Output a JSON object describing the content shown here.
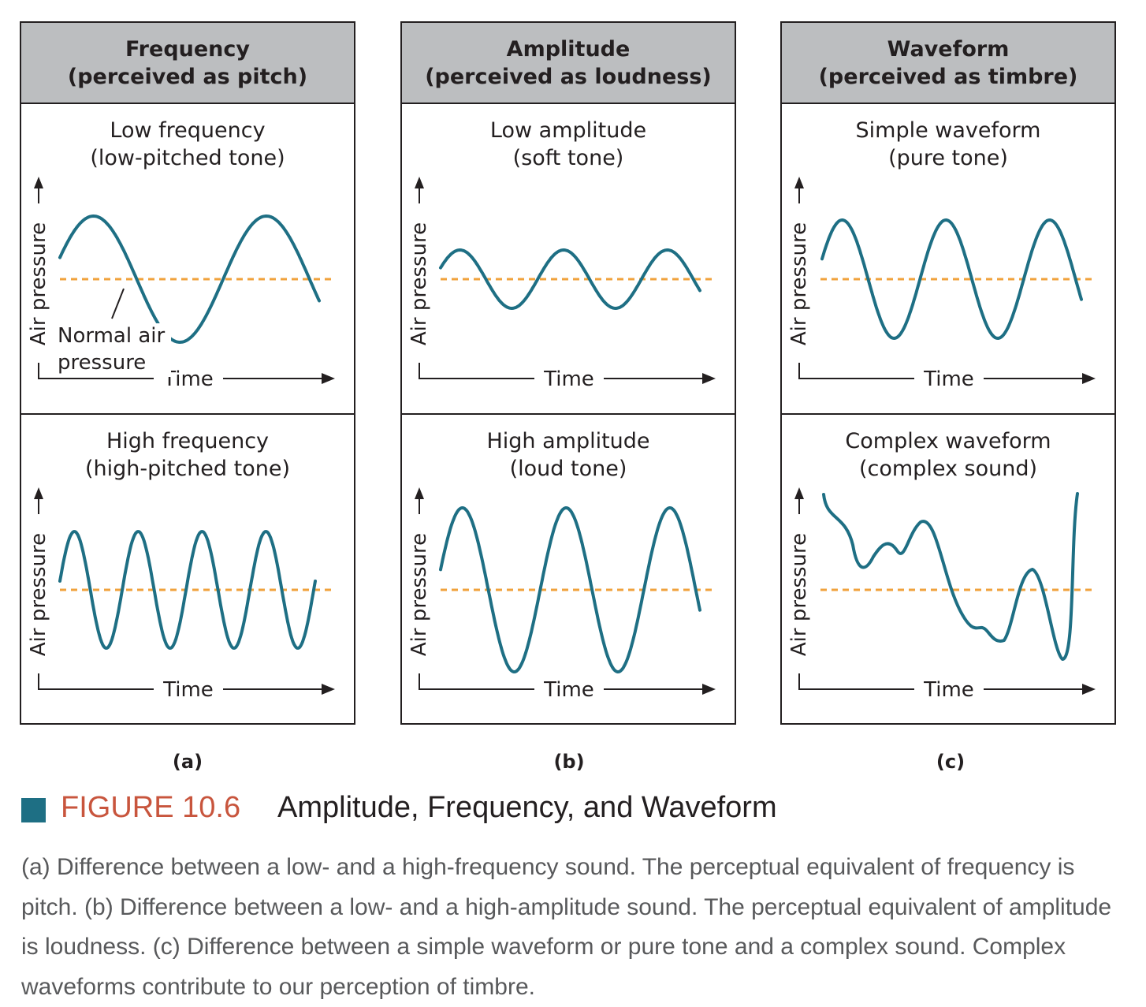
{
  "columns": [
    {
      "header": [
        "Frequency",
        "(perceived as pitch)"
      ],
      "label": "(a)",
      "cells": [
        {
          "title": [
            "Low frequency",
            "(low-pitched tone)"
          ],
          "wave": "low-frequency",
          "annotation": [
            "Normal air",
            "pressure"
          ]
        },
        {
          "title": [
            "High frequency",
            "(high-pitched tone)"
          ],
          "wave": "high-frequency"
        }
      ]
    },
    {
      "header": [
        "Amplitude",
        "(perceived as loudness)"
      ],
      "label": "(b)",
      "cells": [
        {
          "title": [
            "Low amplitude",
            "(soft tone)"
          ],
          "wave": "low-amplitude"
        },
        {
          "title": [
            "High amplitude",
            "(loud tone)"
          ],
          "wave": "high-amplitude"
        }
      ]
    },
    {
      "header": [
        "Waveform",
        "(perceived as timbre)"
      ],
      "label": "(c)",
      "cells": [
        {
          "title": [
            "Simple waveform",
            "(pure tone)"
          ],
          "wave": "simple"
        },
        {
          "title": [
            "Complex waveform",
            "(complex sound)"
          ],
          "wave": "complex"
        }
      ]
    }
  ],
  "axes": {
    "y_label": "Air pressure",
    "x_label": "Time"
  },
  "colors": {
    "wave": "#1e6f84",
    "baseline": "#f0a23c",
    "header_bg": "#bcbec0",
    "figure_number": "#c8553d",
    "caption_text": "#58595b"
  },
  "figure": {
    "number": "FIGURE 10.6",
    "title": "Amplitude, Frequency, and Waveform",
    "caption": "(a) Difference between a low- and a high-frequency sound. The perceptual equivalent of frequency is pitch. (b) Difference between a low- and a high-amplitude sound. The perceptual equivalent of amplitude is loudness. (c) Difference between a simple waveform or pure tone and a complex sound. Complex waveforms contribute to our perception of timbre."
  }
}
